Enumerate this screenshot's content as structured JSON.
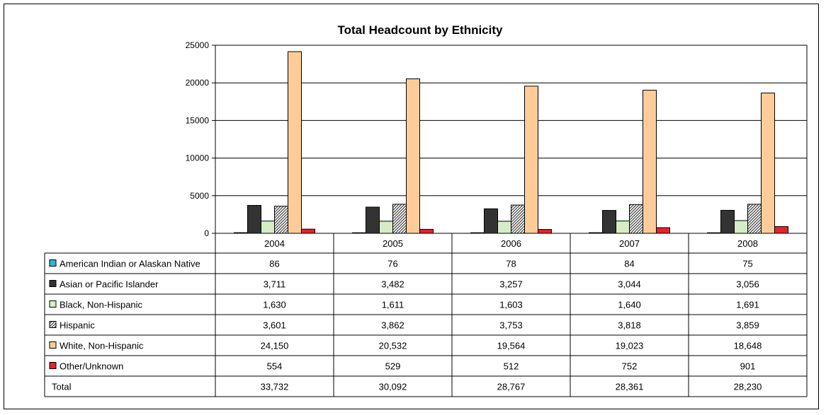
{
  "chart_data": {
    "type": "bar",
    "title": "Total Headcount by Ethnicity",
    "categories": [
      "2004",
      "2005",
      "2006",
      "2007",
      "2008"
    ],
    "ylim": [
      0,
      25000
    ],
    "yticks": [
      "0",
      "5000",
      "10000",
      "15000",
      "20000",
      "25000"
    ],
    "grid": true,
    "legend": "data table",
    "series": [
      {
        "name": "American Indian or Alaskan Native",
        "values": [
          86,
          76,
          78,
          84,
          75
        ],
        "labels": [
          "86",
          "76",
          "78",
          "84",
          "75"
        ],
        "color": "#2fb7d7",
        "pattern": "solid"
      },
      {
        "name": "Asian or Pacific Islander",
        "values": [
          3711,
          3482,
          3257,
          3044,
          3056
        ],
        "labels": [
          "3,711",
          "3,482",
          "3,257",
          "3,044",
          "3,056"
        ],
        "color": "#333333",
        "pattern": "solid"
      },
      {
        "name": "Black, Non-Hispanic",
        "values": [
          1630,
          1611,
          1603,
          1640,
          1691
        ],
        "labels": [
          "1,630",
          "1,611",
          "1,603",
          "1,640",
          "1,691"
        ],
        "color": "#d5ecc6",
        "pattern": "solid"
      },
      {
        "name": "Hispanic",
        "values": [
          3601,
          3862,
          3753,
          3818,
          3859
        ],
        "labels": [
          "3,601",
          "3,862",
          "3,753",
          "3,818",
          "3,859"
        ],
        "color": "#888888",
        "pattern": "hatch"
      },
      {
        "name": "White, Non-Hispanic",
        "values": [
          24150,
          20532,
          19564,
          19023,
          18648
        ],
        "labels": [
          "24,150",
          "20,532",
          "19,564",
          "19,023",
          "18,648"
        ],
        "color": "#ffcc99",
        "pattern": "solid"
      },
      {
        "name": "Other/Unknown",
        "values": [
          554,
          529,
          512,
          752,
          901
        ],
        "labels": [
          "554",
          "529",
          "512",
          "752",
          "901"
        ],
        "color": "#e8212a",
        "pattern": "solid"
      }
    ],
    "total": {
      "name": "Total",
      "labels": [
        "33,732",
        "30,092",
        "28,767",
        "28,361",
        "28,230"
      ]
    }
  }
}
